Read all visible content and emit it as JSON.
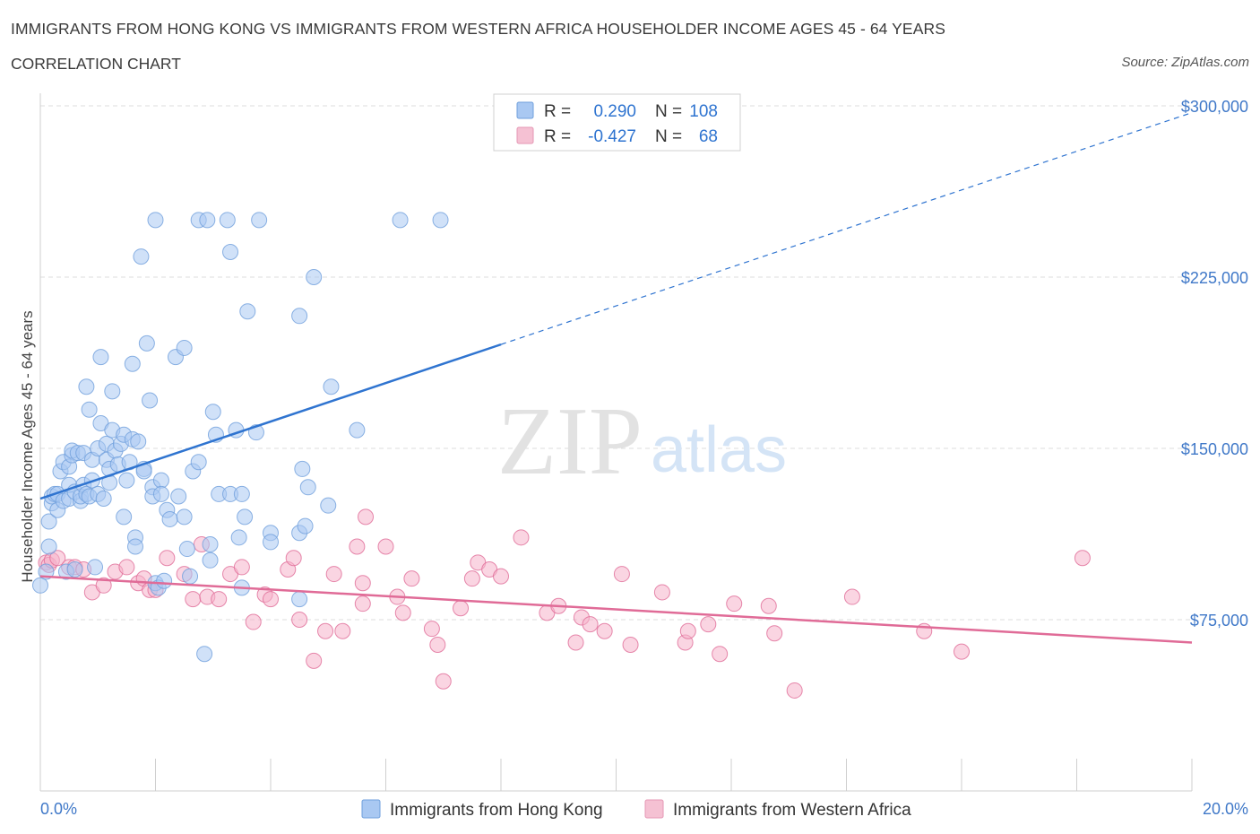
{
  "header": {
    "title": "IMMIGRANTS FROM HONG KONG VS IMMIGRANTS FROM WESTERN AFRICA HOUSEHOLDER INCOME AGES 45 - 64 YEARS",
    "subtitle": "CORRELATION CHART",
    "source": "Source: ZipAtlas.com"
  },
  "watermark": {
    "zip": "ZIP",
    "atlas": "atlas"
  },
  "colors": {
    "blue": "#2f74d0",
    "blue_fill": "#a9c8f2",
    "pink": "#e06b97",
    "pink_fill": "#f5b3ca",
    "grid": "#dcdcdc",
    "axis_text": "#3f78c8"
  },
  "legend": {
    "rows": [
      {
        "r_label": "R =",
        "r_value": "0.290",
        "n_label": "N =",
        "n_value": "108"
      },
      {
        "r_label": "R =",
        "r_value": "-0.427",
        "n_label": "N =",
        "n_value": "68"
      }
    ]
  },
  "chart_data": {
    "type": "scatter",
    "title": "IMMIGRANTS FROM HONG KONG VS IMMIGRANTS FROM WESTERN AFRICA HOUSEHOLDER INCOME AGES 45 - 64 YEARS",
    "xlabel": "",
    "ylabel": "Householder Income Ages 45 - 64 years",
    "xlim": [
      0,
      20
    ],
    "ylim": [
      0,
      300000
    ],
    "x_tick_labels": [
      "0.0%",
      "20.0%"
    ],
    "y_ticks": [
      75000,
      150000,
      225000,
      300000
    ],
    "y_tick_labels": [
      "$75,000",
      "$150,000",
      "$225,000",
      "$300,000"
    ],
    "grid": true,
    "legend_position": "bottom",
    "series": [
      {
        "name": "Immigrants from Hong Kong",
        "color": "#2f74d0",
        "r": 0.29,
        "n": 108,
        "trend": {
          "x0": 0,
          "y0": 128000,
          "x1": 8.0,
          "y1": 195500,
          "extend_to": 20,
          "extend_y": 297000
        },
        "points": [
          [
            0.0,
            90000
          ],
          [
            0.1,
            96000
          ],
          [
            0.15,
            107000
          ],
          [
            0.15,
            118000
          ],
          [
            0.2,
            126000
          ],
          [
            0.2,
            129000
          ],
          [
            0.25,
            130000
          ],
          [
            0.3,
            123000
          ],
          [
            0.3,
            130000
          ],
          [
            0.35,
            140000
          ],
          [
            0.4,
            127000
          ],
          [
            0.4,
            144000
          ],
          [
            0.45,
            96000
          ],
          [
            0.5,
            128000
          ],
          [
            0.5,
            134000
          ],
          [
            0.5,
            142000
          ],
          [
            0.55,
            147000
          ],
          [
            0.55,
            149000
          ],
          [
            0.6,
            97000
          ],
          [
            0.6,
            131000
          ],
          [
            0.65,
            148000
          ],
          [
            0.7,
            127000
          ],
          [
            0.7,
            129000
          ],
          [
            0.75,
            134000
          ],
          [
            0.75,
            148000
          ],
          [
            0.8,
            177000
          ],
          [
            0.8,
            130000
          ],
          [
            0.85,
            167000
          ],
          [
            0.85,
            129000
          ],
          [
            0.9,
            136000
          ],
          [
            0.9,
            145000
          ],
          [
            0.95,
            98000
          ],
          [
            1.0,
            150000
          ],
          [
            1.0,
            130000
          ],
          [
            1.05,
            190000
          ],
          [
            1.05,
            161000
          ],
          [
            1.1,
            128000
          ],
          [
            1.15,
            145000
          ],
          [
            1.15,
            152000
          ],
          [
            1.2,
            135000
          ],
          [
            1.2,
            141000
          ],
          [
            1.25,
            175000
          ],
          [
            1.25,
            158000
          ],
          [
            1.3,
            149000
          ],
          [
            1.35,
            143000
          ],
          [
            1.4,
            152000
          ],
          [
            1.45,
            120000
          ],
          [
            1.45,
            156000
          ],
          [
            1.5,
            136000
          ],
          [
            1.55,
            144000
          ],
          [
            1.6,
            154000
          ],
          [
            1.6,
            187000
          ],
          [
            1.65,
            111000
          ],
          [
            1.65,
            107000
          ],
          [
            1.7,
            153000
          ],
          [
            1.75,
            234000
          ],
          [
            1.8,
            141000
          ],
          [
            1.8,
            140000
          ],
          [
            1.85,
            196000
          ],
          [
            1.9,
            171000
          ],
          [
            1.95,
            133000
          ],
          [
            1.95,
            129000
          ],
          [
            2.0,
            250000
          ],
          [
            2.0,
            91000
          ],
          [
            2.05,
            89000
          ],
          [
            2.1,
            136000
          ],
          [
            2.1,
            130000
          ],
          [
            2.15,
            92000
          ],
          [
            2.2,
            123000
          ],
          [
            2.25,
            119000
          ],
          [
            2.35,
            190000
          ],
          [
            2.4,
            129000
          ],
          [
            2.5,
            194000
          ],
          [
            2.5,
            120000
          ],
          [
            2.55,
            106000
          ],
          [
            2.6,
            94000
          ],
          [
            2.65,
            140000
          ],
          [
            2.75,
            250000
          ],
          [
            2.75,
            144000
          ],
          [
            2.9,
            250000
          ],
          [
            2.95,
            101000
          ],
          [
            2.95,
            108000
          ],
          [
            3.0,
            166000
          ],
          [
            3.05,
            156000
          ],
          [
            3.1,
            130000
          ],
          [
            3.25,
            250000
          ],
          [
            3.3,
            130000
          ],
          [
            3.3,
            236000
          ],
          [
            3.4,
            158000
          ],
          [
            3.45,
            111000
          ],
          [
            3.5,
            130000
          ],
          [
            3.5,
            89000
          ],
          [
            3.55,
            120000
          ],
          [
            3.6,
            210000
          ],
          [
            3.75,
            157000
          ],
          [
            3.8,
            250000
          ],
          [
            4.0,
            113000
          ],
          [
            4.0,
            109000
          ],
          [
            4.5,
            113000
          ],
          [
            4.5,
            208000
          ],
          [
            4.5,
            84000
          ],
          [
            4.55,
            141000
          ],
          [
            4.6,
            116000
          ],
          [
            4.65,
            133000
          ],
          [
            4.75,
            225000
          ],
          [
            5.0,
            125000
          ],
          [
            5.05,
            177000
          ],
          [
            5.5,
            158000
          ],
          [
            6.25,
            250000
          ],
          [
            6.95,
            250000
          ],
          [
            2.85,
            60000
          ]
        ]
      },
      {
        "name": "Immigrants from Western Africa",
        "color": "#e06b97",
        "r": -0.427,
        "n": 68,
        "trend": {
          "x0": 0,
          "y0": 94000,
          "x1": 20,
          "y1": 65000
        },
        "points": [
          [
            0.1,
            100000
          ],
          [
            0.15,
            99000
          ],
          [
            0.2,
            101000
          ],
          [
            0.3,
            102000
          ],
          [
            0.5,
            98000
          ],
          [
            0.6,
            98000
          ],
          [
            0.75,
            97000
          ],
          [
            0.9,
            87000
          ],
          [
            1.1,
            90000
          ],
          [
            1.3,
            96000
          ],
          [
            1.5,
            98000
          ],
          [
            1.7,
            91000
          ],
          [
            1.8,
            93000
          ],
          [
            1.9,
            88000
          ],
          [
            2.0,
            88000
          ],
          [
            2.2,
            102000
          ],
          [
            2.5,
            95000
          ],
          [
            2.65,
            84000
          ],
          [
            2.8,
            108000
          ],
          [
            2.9,
            85000
          ],
          [
            3.1,
            84000
          ],
          [
            3.3,
            95000
          ],
          [
            3.5,
            98000
          ],
          [
            3.7,
            74000
          ],
          [
            3.9,
            86000
          ],
          [
            4.0,
            84000
          ],
          [
            4.3,
            97000
          ],
          [
            4.4,
            102000
          ],
          [
            4.5,
            75000
          ],
          [
            4.75,
            57000
          ],
          [
            4.95,
            70000
          ],
          [
            5.1,
            95000
          ],
          [
            5.25,
            70000
          ],
          [
            5.5,
            107000
          ],
          [
            5.6,
            91000
          ],
          [
            5.6,
            82000
          ],
          [
            5.65,
            120000
          ],
          [
            6.0,
            107000
          ],
          [
            6.2,
            85000
          ],
          [
            6.3,
            78000
          ],
          [
            6.45,
            93000
          ],
          [
            6.8,
            71000
          ],
          [
            6.9,
            64000
          ],
          [
            7.0,
            48000
          ],
          [
            7.3,
            80000
          ],
          [
            7.5,
            93000
          ],
          [
            7.6,
            100000
          ],
          [
            7.8,
            97000
          ],
          [
            8.0,
            94000
          ],
          [
            8.35,
            111000
          ],
          [
            8.8,
            78000
          ],
          [
            9.0,
            81000
          ],
          [
            9.3,
            65000
          ],
          [
            9.4,
            76000
          ],
          [
            9.55,
            73000
          ],
          [
            9.8,
            70000
          ],
          [
            10.1,
            95000
          ],
          [
            10.25,
            64000
          ],
          [
            10.8,
            87000
          ],
          [
            11.2,
            65000
          ],
          [
            11.25,
            70000
          ],
          [
            11.6,
            73000
          ],
          [
            11.8,
            60000
          ],
          [
            12.05,
            82000
          ],
          [
            12.65,
            81000
          ],
          [
            12.75,
            69000
          ],
          [
            13.1,
            44000
          ],
          [
            14.1,
            85000
          ],
          [
            15.35,
            70000
          ],
          [
            16.0,
            61000
          ],
          [
            18.1,
            102000
          ]
        ]
      }
    ]
  }
}
